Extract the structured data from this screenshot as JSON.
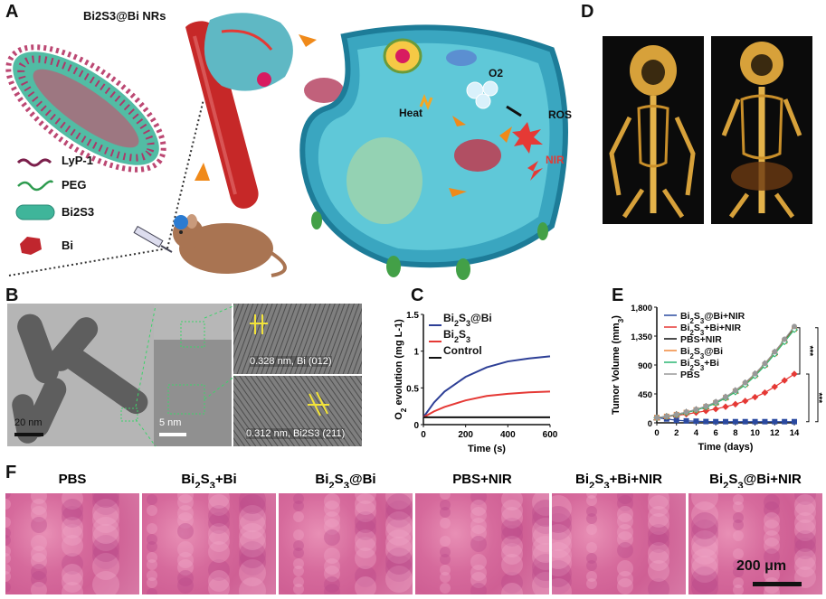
{
  "panels": {
    "A": "A",
    "B": "B",
    "C": "C",
    "D": "D",
    "E": "E",
    "F": "F"
  },
  "panelA": {
    "title": "Bi2S3@Bi NRs",
    "legend": [
      "LyP-1",
      "PEG",
      "Bi2S3",
      "Bi"
    ],
    "labels": {
      "heat": "Heat",
      "o2": "O2",
      "ros": "ROS",
      "nir": "NIR"
    }
  },
  "panelB": {
    "scale1": "20 nm",
    "scale2": "5 nm",
    "lattice1": "0.328 nm, Bi (012)",
    "lattice2": "0.312 nm, Bi2S3 (211)"
  },
  "panelF": {
    "titles": [
      "PBS",
      "Bi2S3+Bi",
      "Bi2S3@Bi",
      "PBS+NIR",
      "Bi2S3+Bi+NIR",
      "Bi2S3@Bi+NIR"
    ],
    "scale": "200 μm"
  },
  "chart_data": [
    {
      "type": "line",
      "panel": "C",
      "xlabel": "Time (s)",
      "ylabel": "O2 evolution (mg L-1)",
      "xlim": [
        0,
        600
      ],
      "ylim": [
        0,
        1.5
      ],
      "xticks": [
        0,
        200,
        400,
        600
      ],
      "yticks": [
        0,
        0.5,
        1,
        1.5
      ],
      "ytick_labels": [
        "0",
        "0.5",
        "1",
        "1.5"
      ],
      "legend_position": "top-left",
      "series": [
        {
          "name": "Bi2S3@Bi",
          "color": "#2d3f96",
          "x": [
            0,
            50,
            100,
            200,
            300,
            400,
            500,
            600
          ],
          "y": [
            0.1,
            0.3,
            0.45,
            0.65,
            0.78,
            0.86,
            0.9,
            0.93
          ]
        },
        {
          "name": "Bi2S3",
          "color": "#e53935",
          "x": [
            0,
            50,
            100,
            200,
            300,
            400,
            500,
            600
          ],
          "y": [
            0.1,
            0.18,
            0.24,
            0.33,
            0.39,
            0.42,
            0.44,
            0.45
          ]
        },
        {
          "name": "Control",
          "color": "#111111",
          "x": [
            0,
            100,
            200,
            300,
            400,
            500,
            600
          ],
          "y": [
            0.1,
            0.1,
            0.1,
            0.1,
            0.1,
            0.1,
            0.1
          ]
        }
      ]
    },
    {
      "type": "line",
      "panel": "E",
      "xlabel": "Time (days)",
      "ylabel": "Tumor Volume (mm3)",
      "xlim": [
        0,
        14
      ],
      "ylim": [
        0,
        1800
      ],
      "xticks": [
        0,
        2,
        4,
        6,
        8,
        10,
        12,
        14
      ],
      "yticks": [
        0,
        450,
        900,
        1350,
        1800
      ],
      "ytick_labels": [
        "0",
        "450",
        "900",
        "1,350",
        "1,800"
      ],
      "legend_position": "top-left",
      "significance": [
        "***",
        "***",
        "***"
      ],
      "series": [
        {
          "name": "Bi2S3@Bi+NIR",
          "color": "#2b4aa0",
          "marker": "square",
          "x": [
            0,
            1,
            2,
            3,
            4,
            5,
            6,
            7,
            8,
            9,
            10,
            11,
            12,
            13,
            14
          ],
          "y": [
            80,
            60,
            40,
            30,
            25,
            20,
            18,
            18,
            18,
            18,
            18,
            18,
            18,
            18,
            18
          ]
        },
        {
          "name": "Bi2S3+Bi+NIR",
          "color": "#e53935",
          "marker": "diamond",
          "x": [
            0,
            1,
            2,
            3,
            4,
            5,
            6,
            7,
            8,
            9,
            10,
            11,
            12,
            13,
            14
          ],
          "y": [
            80,
            95,
            115,
            135,
            160,
            185,
            215,
            250,
            290,
            340,
            400,
            470,
            560,
            660,
            760
          ]
        },
        {
          "name": "PBS+NIR",
          "color": "#111111",
          "marker": "triangle",
          "x": [
            0,
            1,
            2,
            3,
            4,
            5,
            6,
            7,
            8,
            9,
            10,
            11,
            12,
            13,
            14
          ],
          "y": [
            80,
            100,
            130,
            165,
            205,
            255,
            320,
            400,
            500,
            620,
            760,
            920,
            1100,
            1290,
            1480
          ]
        },
        {
          "name": "Bi2S3@Bi",
          "color": "#f0883a",
          "marker": "open-square",
          "x": [
            0,
            1,
            2,
            3,
            4,
            5,
            6,
            7,
            8,
            9,
            10,
            11,
            12,
            13,
            14
          ],
          "y": [
            80,
            100,
            128,
            160,
            200,
            250,
            310,
            390,
            490,
            600,
            740,
            900,
            1080,
            1270,
            1460
          ]
        },
        {
          "name": "Bi2S3+Bi",
          "color": "#2bb673",
          "marker": "open-diamond",
          "x": [
            0,
            1,
            2,
            3,
            4,
            5,
            6,
            7,
            8,
            9,
            10,
            11,
            12,
            13,
            14
          ],
          "y": [
            80,
            98,
            125,
            158,
            198,
            245,
            305,
            385,
            480,
            590,
            730,
            890,
            1070,
            1260,
            1450
          ]
        },
        {
          "name": "PBS",
          "color": "#999999",
          "marker": "circle",
          "x": [
            0,
            1,
            2,
            3,
            4,
            5,
            6,
            7,
            8,
            9,
            10,
            11,
            12,
            13,
            14
          ],
          "y": [
            80,
            102,
            132,
            168,
            210,
            260,
            325,
            405,
            505,
            625,
            765,
            925,
            1105,
            1300,
            1500
          ]
        }
      ]
    }
  ]
}
